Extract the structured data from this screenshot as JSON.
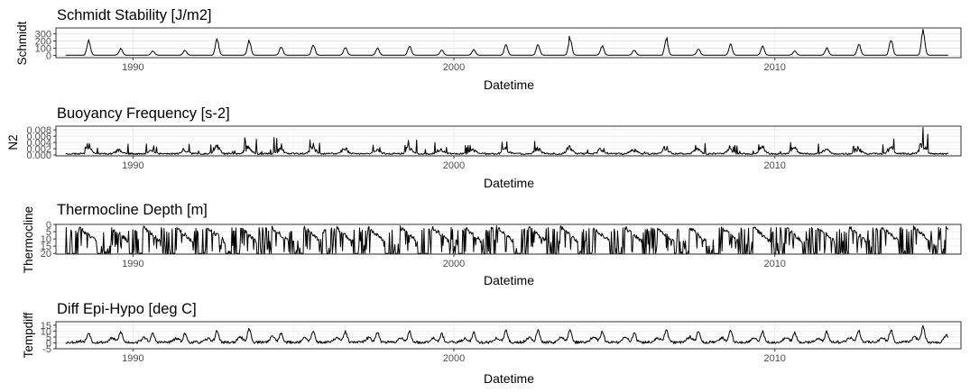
{
  "chart_data": [
    {
      "type": "line",
      "title": "Schmidt Stability [J/m2]",
      "ylabel": "Schmidt",
      "xlabel": "Datetime",
      "xlim": [
        1987.6,
        2015.8
      ],
      "ylim": [
        -30,
        380
      ],
      "yticks": [
        0,
        100,
        200,
        300
      ],
      "ytick_labels": [
        "0",
        "100",
        "200",
        "300"
      ],
      "xticks": [
        1990,
        2000,
        2010
      ],
      "xtick_labels": [
        "1990",
        "2000",
        "2010"
      ],
      "x_start": 1987.9,
      "x_end": 2015.4,
      "grid": true,
      "series": [
        {
          "kind": "seasonal",
          "baseline": 5,
          "peaks": [
            80,
            210,
            95,
            60,
            70,
            215,
            200,
            120,
            145,
            110,
            100,
            130,
            75,
            80,
            145,
            155,
            225,
            130,
            75,
            215,
            90,
            150,
            125,
            60,
            100,
            155,
            225,
            340,
            105,
            140,
            120,
            80
          ],
          "seed": 11
        }
      ]
    },
    {
      "type": "line",
      "title": "Buoyancy Frequency [s-2]",
      "ylabel": "N2",
      "xlabel": "Datetime",
      "xlim": [
        1987.6,
        2015.8
      ],
      "ylim": [
        -0.0003,
        0.0092
      ],
      "yticks": [
        0.0,
        0.002,
        0.004,
        0.006,
        0.008
      ],
      "ytick_labels": [
        "0.000",
        "0.002",
        "0.004",
        "0.006",
        "0.008"
      ],
      "xticks": [
        1990,
        2000,
        2010
      ],
      "xtick_labels": [
        "1990",
        "2000",
        "2010"
      ],
      "x_start": 1987.9,
      "x_end": 2015.4,
      "grid": true,
      "series": [
        {
          "kind": "spiky",
          "baseline": 0.0005,
          "peaks": [
            0.0015,
            0.0065,
            0.0035,
            0.003,
            0.0035,
            0.0065,
            0.0058,
            0.004,
            0.005,
            0.0042,
            0.0032,
            0.0052,
            0.0032,
            0.0035,
            0.0045,
            0.0048,
            0.0058,
            0.0045,
            0.004,
            0.0055,
            0.004,
            0.0038,
            0.0052,
            0.0045,
            0.0035,
            0.0045,
            0.0052,
            0.0088,
            0.0045,
            0.0052,
            0.0055,
            0.0035
          ],
          "seed": 23
        }
      ]
    },
    {
      "type": "line",
      "title": "Thermocline Depth [m]",
      "ylabel": "Thermocline",
      "xlabel": "Datetime",
      "xlim": [
        1987.6,
        2015.8
      ],
      "ylim": [
        20.5,
        0
      ],
      "y_reversed": true,
      "yticks": [
        0,
        5,
        10,
        15,
        20
      ],
      "ytick_labels": [
        "0",
        "5",
        "10",
        "15",
        "20"
      ],
      "xticks": [
        1990,
        2000,
        2010
      ],
      "xtick_labels": [
        "1990",
        "2000",
        "2010"
      ],
      "x_start": 1987.9,
      "x_end": 2015.4,
      "grid": true,
      "series": [
        {
          "kind": "depth",
          "shallow": 2,
          "deep": 20,
          "seed": 37
        }
      ]
    },
    {
      "type": "line",
      "title": "Diff Epi-Hypo [deg C]",
      "ylabel": "Tempdiff",
      "xlabel": "Datetime",
      "xlim": [
        1987.6,
        2015.8
      ],
      "ylim": [
        -5,
        18
      ],
      "yticks": [
        -5,
        0,
        5,
        10,
        15
      ],
      "ytick_labels": [
        "-5",
        "0",
        "5",
        "10",
        "15"
      ],
      "xticks": [
        1990,
        2000,
        2010
      ],
      "xtick_labels": [
        "1990",
        "2000",
        "2010"
      ],
      "x_start": 1987.9,
      "x_end": 2015.4,
      "grid": true,
      "series": [
        {
          "kind": "seasonal_noisy",
          "baseline": 0.5,
          "peaks": [
            3,
            10,
            11,
            9,
            9,
            12,
            14,
            10,
            11,
            11,
            11,
            11,
            9,
            10,
            12,
            12,
            13,
            11,
            10,
            13,
            11,
            12,
            11,
            10,
            11,
            12,
            13,
            16,
            11,
            12,
            12,
            10
          ],
          "seed": 53
        }
      ]
    }
  ]
}
